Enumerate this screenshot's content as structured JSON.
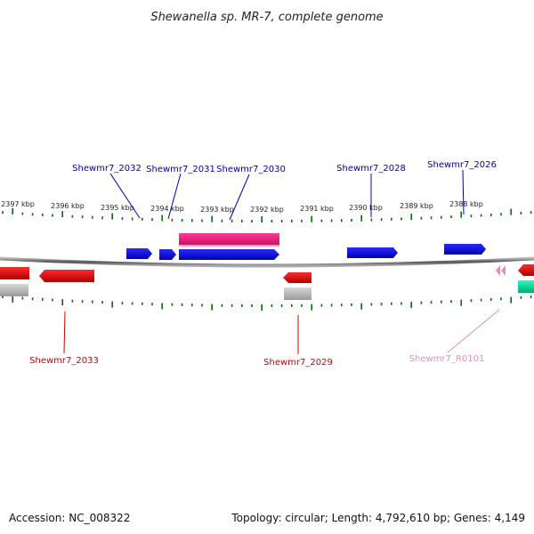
{
  "title": "Shewanella sp. MR-7, complete genome",
  "footer": {
    "accession": "Accession: NC_008322",
    "topology": "Topology: circular; Length: 4,792,610 bp; Genes: 4,149"
  },
  "colors": {
    "forward_cds": "#0000ee",
    "reverse_cds": "#ee0000",
    "forward_gene": "#ee1177",
    "reverse_gene": "#aaaaaa",
    "rna": "#ff66bb",
    "rna_gene": "#00dd99",
    "tick": "#116611",
    "backbone": "#777777",
    "forward_label": "#0000aa",
    "reverse_label": "#cc0000",
    "rna_label": "#ee88bb"
  },
  "ruler": {
    "unit": "kbp",
    "labels": [
      "2397 kbp",
      "2396 kbp",
      "2395 kbp",
      "2394 kbp",
      "2393 kbp",
      "2392 kbp",
      "2391 kbp",
      "2390 kbp",
      "2389 kbp",
      "2388 kbp"
    ]
  },
  "genes": [
    {
      "id": "Shewmr7_2032",
      "strand": "forward"
    },
    {
      "id": "Shewmr7_2031",
      "strand": "forward"
    },
    {
      "id": "Shewmr7_2030",
      "strand": "forward"
    },
    {
      "id": "Shewmr7_2028",
      "strand": "forward"
    },
    {
      "id": "Shewmr7_2026",
      "strand": "forward"
    },
    {
      "id": "Shewmr7_2033",
      "strand": "reverse"
    },
    {
      "id": "Shewmr7_2029",
      "strand": "reverse"
    },
    {
      "id": "Shewmr7_R0101",
      "strand": "reverse",
      "type": "rna"
    }
  ]
}
